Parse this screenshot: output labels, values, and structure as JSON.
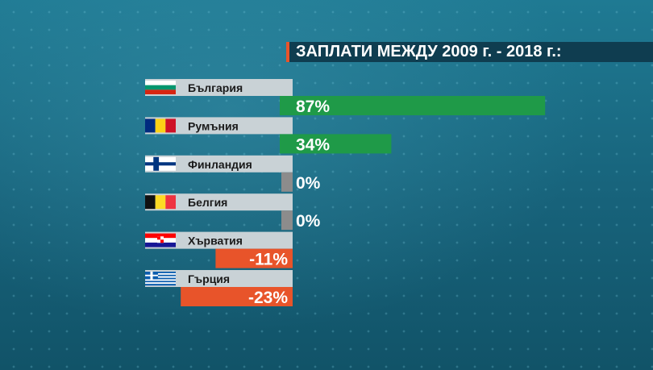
{
  "title": "ЗАПЛАТИ МЕЖДУ 2009 г. - 2018 г.:",
  "colors": {
    "background": "#1b6f87",
    "positive": "#1f9a48",
    "zero": "#8c8c8c",
    "negative": "#e8542a",
    "label_box": "#c9d2d6"
  },
  "chart_data": {
    "type": "bar",
    "title": "ЗАПЛАТИ МЕЖДУ 2009 г. - 2018 г.:",
    "unit": "%",
    "categories": [
      "България",
      "Румъния",
      "Финландия",
      "Белгия",
      "Хърватия",
      "Гърция"
    ],
    "values": [
      87,
      34,
      0,
      0,
      -11,
      -23
    ],
    "value_labels": [
      "87%",
      "34%",
      "0%",
      "0%",
      "-11%",
      "-23%"
    ],
    "flags": [
      "bulgaria-flag-icon",
      "romania-flag-icon",
      "finland-flag-icon",
      "belgium-flag-icon",
      "croatia-flag-icon",
      "greece-flag-icon"
    ]
  }
}
